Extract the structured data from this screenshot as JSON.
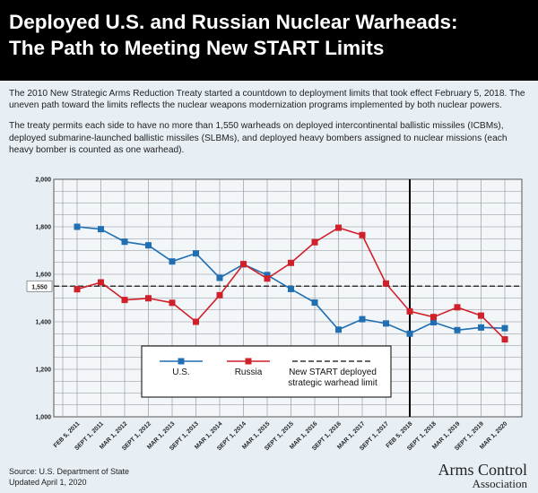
{
  "title_line1": "Deployed U.S. and Russian Nuclear Warheads:",
  "title_line2": "The Path to Meeting New START Limits",
  "intro_p1": "The 2010 New Strategic Arms Reduction Treaty started a countdown to deployment limits that took effect February 5, 2018. The uneven path toward the limits reflects the nuclear weapons modernization programs implemented by both nuclear powers.",
  "intro_p2": "The treaty permits each side to have no more than 1,550 warheads on deployed intercontinental ballistic missiles (ICBMs), deployed submarine-launched ballistic missiles (SLBMs), and deployed heavy bombers assigned to nuclear missions (each heavy bomber is counted as one warhead).",
  "source": "Source: U.S. Department of State",
  "updated": "Updated April 1, 2020",
  "logo_line1": "Arms Control",
  "logo_line2": "Association",
  "colors": {
    "us": "#1f6fb2",
    "russia": "#d0202a",
    "limit": "#333333",
    "treaty_line": "#000000"
  },
  "chart_data": {
    "type": "line",
    "title": "Deployed U.S. and Russian Nuclear Warheads",
    "categories": [
      "FEB 5, 2011",
      "SEPT 1, 2011",
      "MAR 1, 2012",
      "SEPT 1, 2012",
      "MAR 1, 2013",
      "SEPT 1, 2013",
      "MAR 1, 2014",
      "SEPT 1, 2014",
      "MAR 1, 2015",
      "SEPT 1, 2015",
      "MAR 1, 2016",
      "SEPT 1, 2016",
      "MAR 1, 2017",
      "SEPT 1, 2017",
      "FEB 5, 2018",
      "SEPT 1, 2018",
      "MAR 1, 2019",
      "SEPT 1, 2019",
      "MAR 1, 2020"
    ],
    "series": [
      {
        "name": "U.S.",
        "values": [
          1800,
          1790,
          1737,
          1722,
          1654,
          1688,
          1585,
          1642,
          1597,
          1538,
          1481,
          1367,
          1411,
          1393,
          1350,
          1398,
          1365,
          1376,
          1373
        ]
      },
      {
        "name": "Russia",
        "values": [
          1537,
          1566,
          1492,
          1499,
          1480,
          1400,
          1512,
          1643,
          1582,
          1648,
          1735,
          1796,
          1765,
          1561,
          1444,
          1420,
          1461,
          1426,
          1326
        ]
      }
    ],
    "limit": {
      "value": 1550,
      "label": "1,550",
      "legend": [
        "New START deployed",
        "strategic warhead limit"
      ]
    },
    "treaty_deadline_category": "FEB 5, 2018",
    "ylim": [
      1000,
      2000
    ],
    "yticks": [
      {
        "value": 1000,
        "label": "1,000"
      },
      {
        "value": 1200,
        "label": "1,200"
      },
      {
        "value": 1400,
        "label": "1,400"
      },
      {
        "value": 1600,
        "label": "1,600"
      },
      {
        "value": 1800,
        "label": "1,800"
      },
      {
        "value": 2000,
        "label": "2,000"
      }
    ],
    "legend_position": "bottom-center",
    "grid": true
  }
}
